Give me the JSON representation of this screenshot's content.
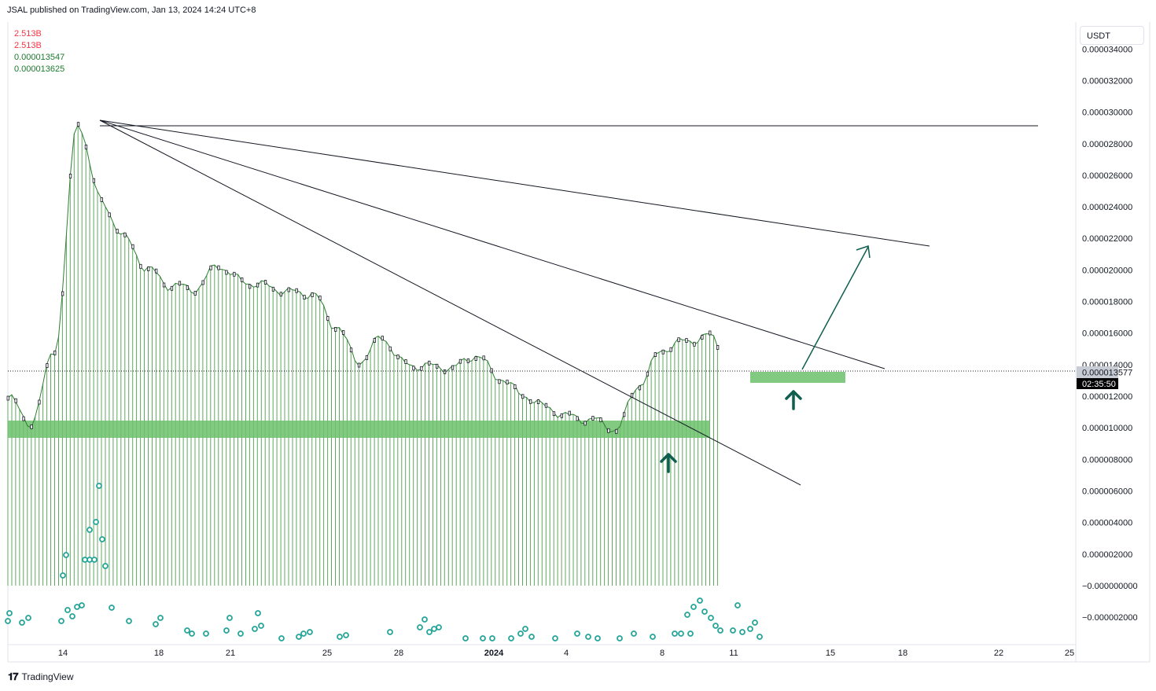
{
  "header": {
    "text": "JSAL published on TradingView.com, Jan 13, 2024 14:24 UTC+8"
  },
  "legend": {
    "vol1": "2.513B",
    "vol2": "2.513B",
    "val1": "0.000013547",
    "val2": "0.000013625"
  },
  "currency": "USDT",
  "footer": {
    "brand": "TradingView"
  },
  "colors": {
    "volume": "#5fa85f",
    "zone": "#6cc16c",
    "arrow": "#0f5f4f",
    "dots": "#26a69a",
    "price_tag": "#c8ccd4",
    "countdown_bg": "#000000"
  },
  "chart_data": {
    "type": "line",
    "symbol_quote": "USDT",
    "yaxis_labels": [
      "0.000034000",
      "0.000032000",
      "0.000030000",
      "0.000028000",
      "0.000026000",
      "0.000024000",
      "0.000022000",
      "0.000020000",
      "0.000018000",
      "0.000016000",
      "0.000014000",
      "0.000012000",
      "0.000010000",
      "0.000008000",
      "0.000006000",
      "0.000004000",
      "0.000002000",
      "−0.000000000",
      "−0.000002000"
    ],
    "xaxis_labels": [
      "14",
      "18",
      "21",
      "25",
      "28",
      "2024",
      "4",
      "8",
      "11",
      "15",
      "18",
      "22",
      "25"
    ],
    "last_price": "0.000013577",
    "countdown": "02:35:50",
    "price_series": {
      "x": [
        "Dec 13",
        "Dec 14",
        "Dec 15",
        "Dec 16",
        "Dec 17",
        "Dec 18",
        "Dec 19",
        "Dec 20",
        "Dec 21",
        "Dec 22",
        "Dec 23",
        "Dec 24",
        "Dec 25",
        "Dec 26",
        "Dec 27",
        "Dec 28",
        "Dec 29",
        "Dec 30",
        "Dec 31",
        "Jan 1",
        "Jan 2",
        "Jan 3",
        "Jan 4",
        "Jan 5",
        "Jan 6",
        "Jan 7",
        "Jan 8",
        "Jan 9",
        "Jan 10",
        "Jan 11",
        "Jan 12",
        "Jan 13"
      ],
      "y": [
        1.19e-05,
        1.03e-05,
        1.5e-05,
        2.93e-05,
        2.43e-05,
        2.2e-05,
        2e-05,
        1.9e-05,
        1.88e-05,
        2.03e-05,
        1.93e-05,
        1.9e-05,
        1.86e-05,
        1.85e-05,
        1.65e-05,
        1.42e-05,
        1.57e-05,
        1.4e-05,
        1.39e-05,
        1.38e-05,
        1.46e-05,
        1.32e-05,
        1.21e-05,
        1.13e-05,
        1.07e-05,
        1.05e-05,
        9.9e-06,
        1.28e-05,
        1.5e-05,
        1.55e-05,
        1.58e-05,
        1.36e-05
      ]
    },
    "annotations": {
      "support_zones": [
        "~0.0000094–0.0000105",
        "~0.0000130–0.0000137"
      ],
      "resistance_line": "0.0000293",
      "target_arrow": "toward ~0.0000222"
    }
  }
}
